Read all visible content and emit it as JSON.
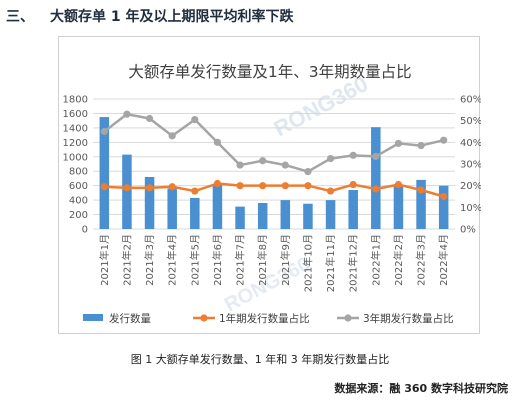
{
  "section": {
    "number": "三、",
    "title": "大额存单 1 年及以上期限平均利率下跌"
  },
  "figure": {
    "caption": "图 1  大额存单发行数量、1 年和 3 年期发行数量占比",
    "source": "数据来源：融 360 数字科技研究院",
    "watermark": "RONG360"
  },
  "chart_data": {
    "type": "bar",
    "title": "大额存单发行数量及1年、3年期数量占比",
    "categories": [
      "2021年1月",
      "2021年2月",
      "2021年3月",
      "2021年4月",
      "2021年5月",
      "2021年6月",
      "2021年7月",
      "2021年8月",
      "2021年9月",
      "2021年10月",
      "2021年11月",
      "2021年12月",
      "2022年1月",
      "2022年2月",
      "2022年3月",
      "2022年4月"
    ],
    "series": [
      {
        "name": "发行数量",
        "type": "bar",
        "axis": "left",
        "color": "#4a8fd0",
        "values": [
          1550,
          1030,
          720,
          560,
          430,
          610,
          310,
          360,
          400,
          350,
          400,
          540,
          1410,
          600,
          680,
          600
        ]
      },
      {
        "name": "1年期发行数量占比",
        "type": "line",
        "axis": "right",
        "color": "#ed7d31",
        "values": [
          19.5,
          19,
          19,
          19.5,
          17.5,
          21,
          20,
          20,
          20,
          20,
          17.5,
          20.5,
          18.5,
          20.5,
          18,
          15
        ]
      },
      {
        "name": "3年期发行数量占比",
        "type": "line",
        "axis": "right",
        "color": "#a5a5a5",
        "values": [
          45,
          53,
          51,
          43,
          50.5,
          40,
          29.5,
          31.5,
          29.5,
          26.5,
          32.5,
          34,
          33.5,
          39.5,
          38.5,
          41
        ]
      }
    ],
    "y_left": {
      "min": 0,
      "max": 1800,
      "ticks": [
        "0",
        "200",
        "400",
        "600",
        "800",
        "1000",
        "1200",
        "1400",
        "1600",
        "1800"
      ]
    },
    "y_right": {
      "min": 0,
      "max": 60,
      "ticks": [
        "0%",
        "10%",
        "20%",
        "30%",
        "40%",
        "50%",
        "60%"
      ]
    },
    "grid": true,
    "legend_position": "bottom"
  }
}
